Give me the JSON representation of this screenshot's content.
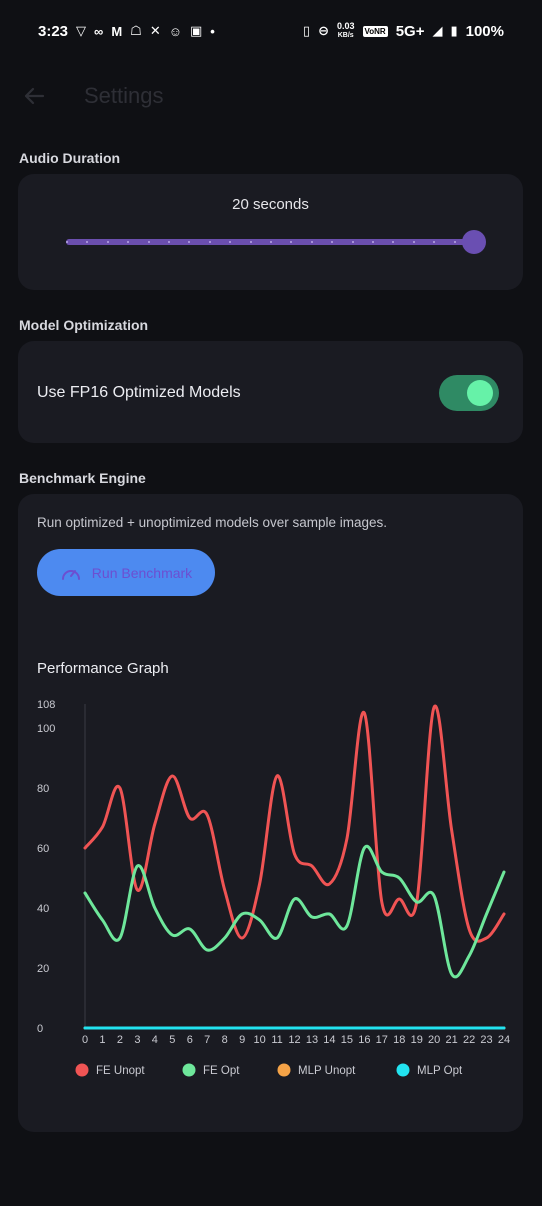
{
  "status_bar": {
    "time": "3:23",
    "network_speed_value": "0.03",
    "network_speed_unit": "KB/s",
    "volte": "VoNR",
    "network_type": "5G+",
    "battery": "100%",
    "icons": [
      "vpn-icon",
      "glasses-icon",
      "myntra-icon",
      "ghost-icon",
      "x-icon",
      "reddit-icon",
      "app-icon",
      "dot-icon",
      "vibrate-icon",
      "dnd-icon",
      "signal-icon",
      "battery-icon"
    ]
  },
  "app_bar": {
    "title": "Settings",
    "back_icon": "arrow-left-icon"
  },
  "audio_duration": {
    "section_label": "Audio Duration",
    "value_text": "20 seconds",
    "slider_fraction": 1.0,
    "ticks": 20
  },
  "model_optimization": {
    "section_label": "Model Optimization",
    "toggle_label": "Use FP16 Optimized Models",
    "toggle_on": true
  },
  "benchmark": {
    "section_label": "Benchmark Engine",
    "description": "Run optimized + unoptimized models over sample images.",
    "button_label": "Run Benchmark",
    "button_icon": "speedometer-icon",
    "graph_title": "Performance Graph"
  },
  "chart_data": {
    "type": "line",
    "title": "Performance Graph",
    "x": [
      0,
      1,
      2,
      3,
      4,
      5,
      6,
      7,
      8,
      9,
      10,
      11,
      12,
      13,
      14,
      15,
      16,
      17,
      18,
      19,
      20,
      21,
      22,
      23,
      24
    ],
    "ylim": [
      0,
      108
    ],
    "y_ticks": [
      0,
      20,
      40,
      60,
      80,
      100,
      108
    ],
    "legend_position": "bottom",
    "series": [
      {
        "name": "FE Unopt",
        "color": "#f05454",
        "values": [
          60,
          67,
          80,
          46,
          68,
          84,
          70,
          71,
          46,
          30,
          48,
          84,
          58,
          54,
          48,
          63,
          105,
          42,
          43,
          42,
          107,
          66,
          33,
          30,
          38
        ]
      },
      {
        "name": "FE Opt",
        "color": "#6ee79b",
        "values": [
          45,
          36,
          30,
          54,
          40,
          31,
          33,
          26,
          30,
          38,
          36,
          30,
          43,
          37,
          38,
          34,
          60,
          52,
          50,
          42,
          44,
          18,
          24,
          38,
          52
        ]
      },
      {
        "name": "MLP Unopt",
        "color": "#f5a347",
        "values": [
          0,
          0,
          0,
          0,
          0,
          0,
          0,
          0,
          0,
          0,
          0,
          0,
          0,
          0,
          0,
          0,
          0,
          0,
          0,
          0,
          0,
          0,
          0,
          0,
          0
        ]
      },
      {
        "name": "MLP Opt",
        "color": "#22e3f0",
        "values": [
          0,
          0,
          0,
          0,
          0,
          0,
          0,
          0,
          0,
          0,
          0,
          0,
          0,
          0,
          0,
          0,
          0,
          0,
          0,
          0,
          0,
          0,
          0,
          0,
          0
        ]
      }
    ]
  }
}
